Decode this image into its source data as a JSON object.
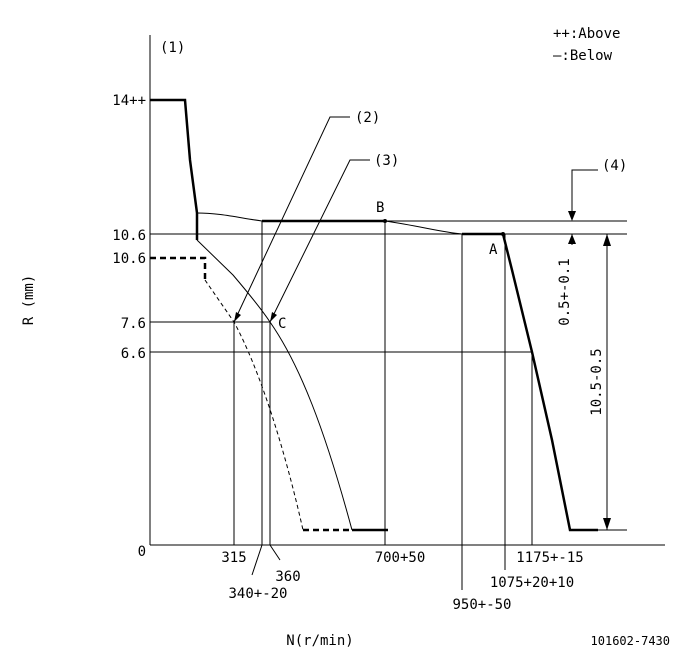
{
  "header": {
    "figure": "(1)",
    "legend_above": "++:Above",
    "legend_below": "—:Below"
  },
  "y_axis": {
    "title": "R (mm)",
    "labels": [
      "14++",
      "10.6",
      "10.6",
      "7.6",
      "6.6",
      "0"
    ]
  },
  "x_axis": {
    "title": "N(r/min)",
    "labels": [
      "315",
      "340+-20",
      "360",
      "700+50",
      "950+-50",
      "1075+20+10",
      "1175+-15"
    ]
  },
  "callouts": [
    "(2)",
    "(3)",
    "(4)"
  ],
  "points": [
    "A",
    "B",
    "C"
  ],
  "dimensions": [
    "0.5+-0.1",
    "10.5-0.5"
  ],
  "footer": {
    "code": "101602-7430"
  }
}
